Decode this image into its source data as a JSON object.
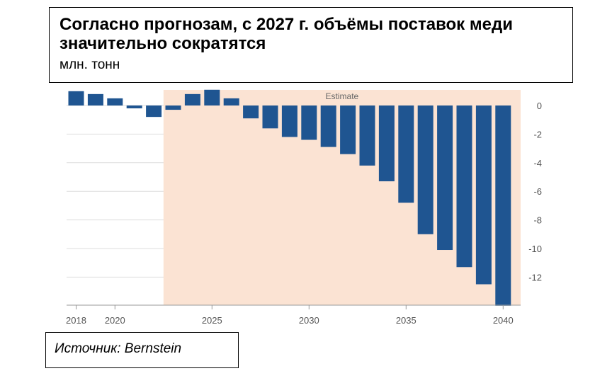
{
  "header": {
    "title": "Согласно прогнозам, с 2027 г. объёмы поставок меди значительно сократятся",
    "subtitle": "млн. тонн"
  },
  "source": "Источник: Bernstein",
  "colors": {
    "bar": "#1f5591",
    "estimate_band": "#fbe3d3",
    "grid": "#dddddd"
  },
  "chart_data": {
    "type": "bar",
    "x": [
      2018,
      2019,
      2020,
      2021,
      2022,
      2023,
      2024,
      2025,
      2026,
      2027,
      2028,
      2029,
      2030,
      2031,
      2032,
      2033,
      2034,
      2035,
      2036,
      2037,
      2038,
      2039,
      2040
    ],
    "values": [
      1.0,
      0.8,
      0.5,
      -0.2,
      -0.8,
      -0.3,
      0.8,
      1.1,
      0.5,
      -0.9,
      -1.6,
      -2.2,
      -2.4,
      -2.9,
      -3.4,
      -4.2,
      -5.3,
      -6.8,
      -9.0,
      -10.1,
      -11.3,
      -12.5,
      -14.0
    ],
    "ylim": [
      -14,
      1.2
    ],
    "yticks": [
      0,
      -2,
      -4,
      -6,
      -8,
      -10,
      -12
    ],
    "xtick_labels": [
      2018,
      2020,
      2025,
      2030,
      2035,
      2040
    ],
    "annotation": "Estimate",
    "estimate_from": 2023,
    "grid": true
  }
}
